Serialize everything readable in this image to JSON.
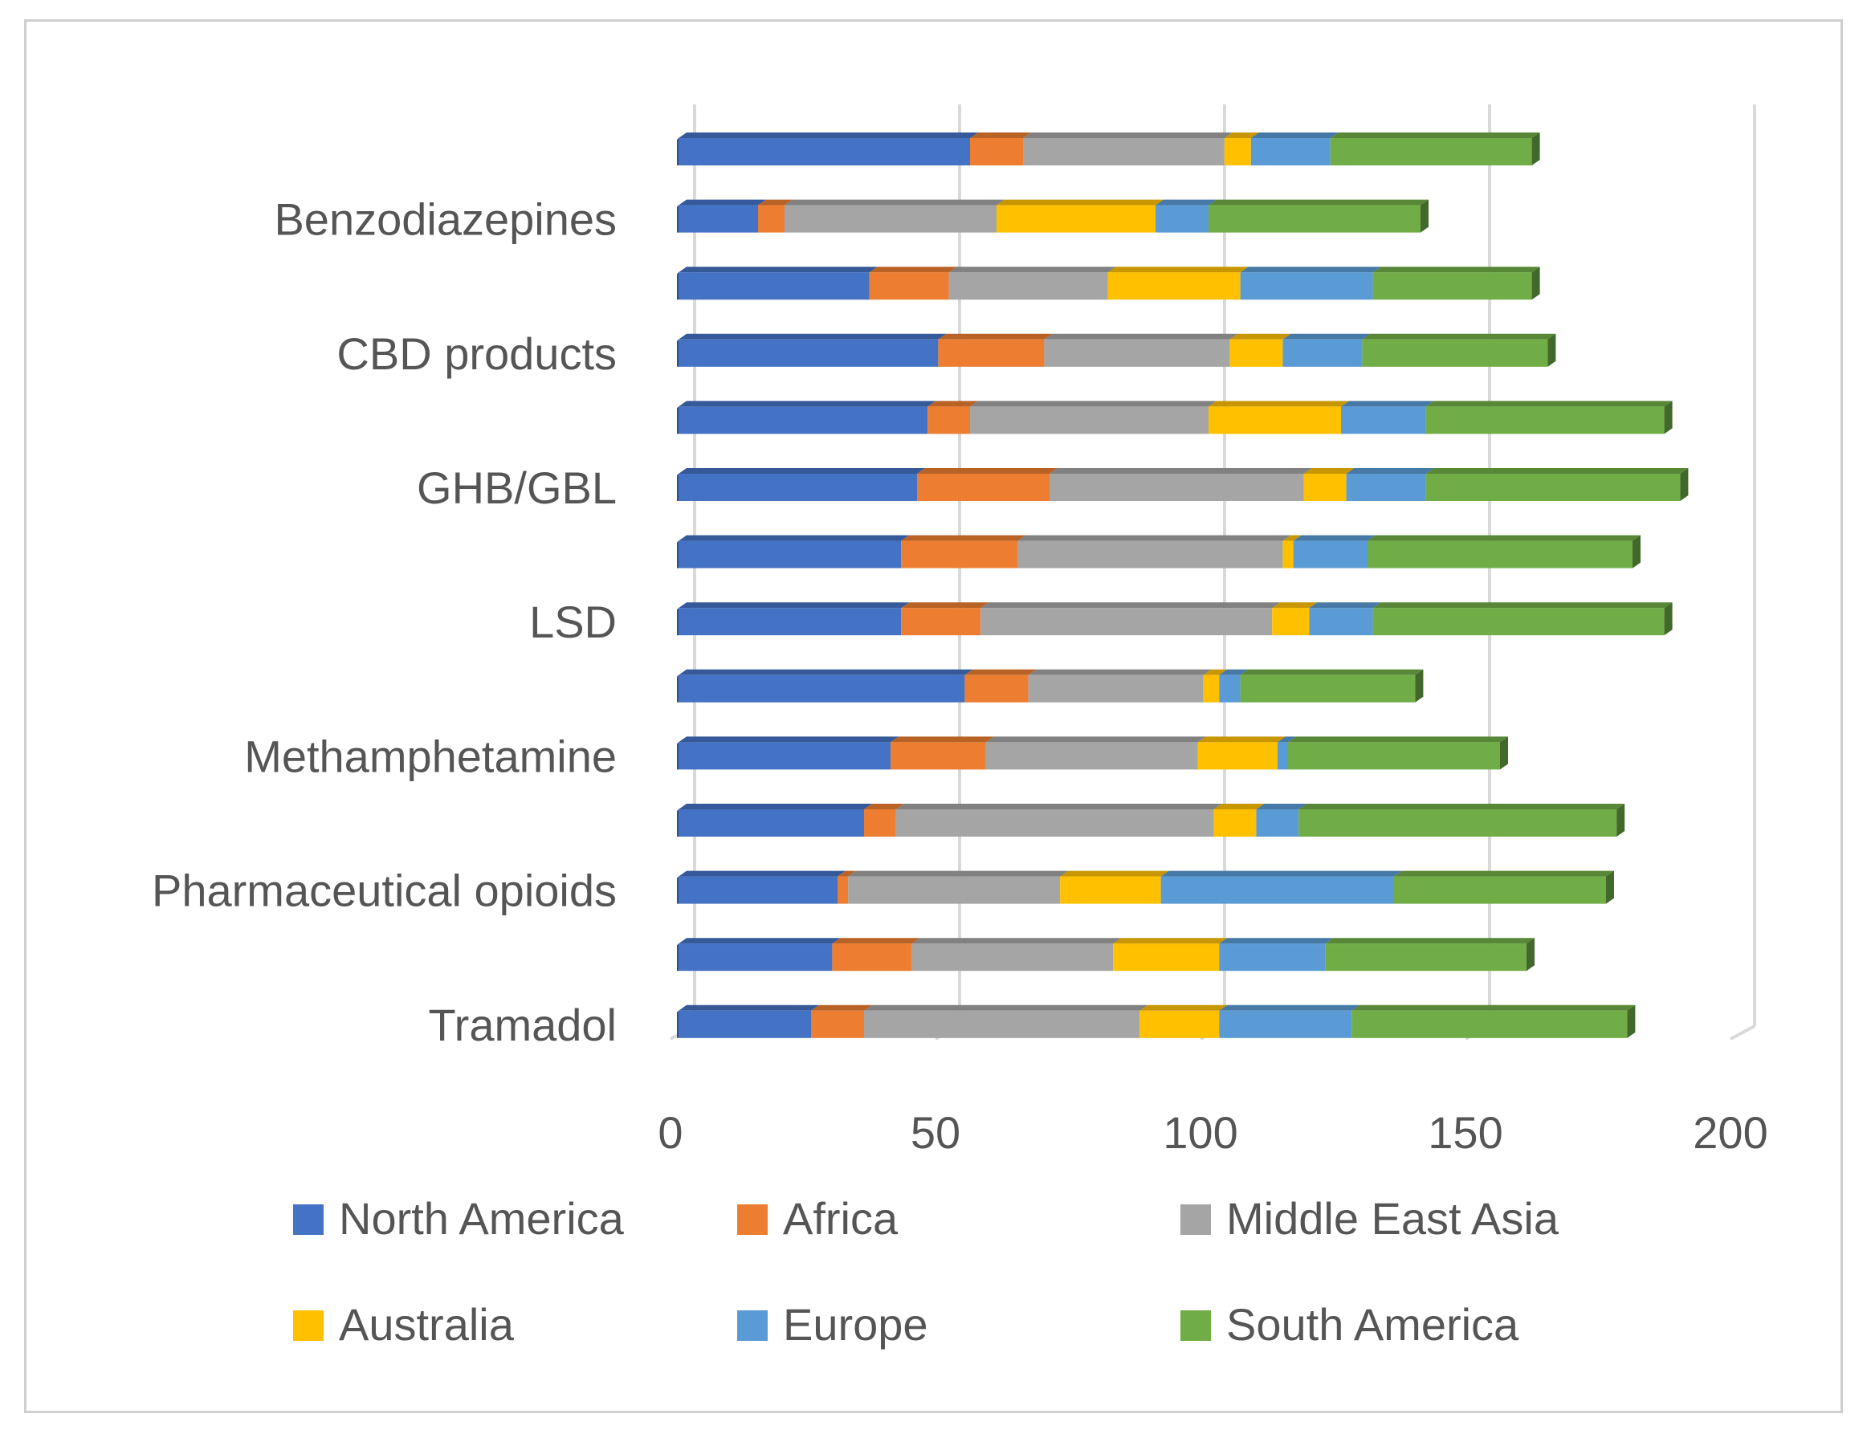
{
  "chart_data": {
    "type": "bar",
    "orientation": "horizontal",
    "stacked": true,
    "style": "3d",
    "title": "",
    "xlabel": "",
    "ylabel": "",
    "xlim": [
      0,
      200
    ],
    "ticks": [
      0,
      50,
      100,
      150,
      200
    ],
    "grid": true,
    "legend_position": "bottom",
    "rows": [
      {
        "label": "",
        "values": [
          55,
          10,
          38,
          5,
          15,
          38
        ]
      },
      {
        "label": "Benzodiazepines",
        "values": [
          15,
          5,
          40,
          30,
          10,
          40
        ]
      },
      {
        "label": "",
        "values": [
          36,
          15,
          30,
          25,
          25,
          30
        ]
      },
      {
        "label": "CBD products",
        "values": [
          49,
          20,
          35,
          10,
          15,
          35
        ]
      },
      {
        "label": "",
        "values": [
          47,
          8,
          45,
          25,
          16,
          45
        ]
      },
      {
        "label": "GHB/GBL",
        "values": [
          45,
          25,
          48,
          8,
          15,
          48
        ]
      },
      {
        "label": "",
        "values": [
          42,
          22,
          50,
          2,
          14,
          50
        ]
      },
      {
        "label": "LSD",
        "values": [
          42,
          15,
          55,
          7,
          12,
          55
        ]
      },
      {
        "label": "",
        "values": [
          54,
          12,
          33,
          3,
          4,
          33
        ]
      },
      {
        "label": "Methamphetamine",
        "values": [
          40,
          18,
          40,
          15,
          2,
          40
        ]
      },
      {
        "label": "",
        "values": [
          35,
          6,
          60,
          8,
          8,
          60
        ]
      },
      {
        "label": "Pharmaceutical opioids",
        "values": [
          30,
          2,
          40,
          19,
          44,
          40
        ]
      },
      {
        "label": "",
        "values": [
          29,
          15,
          38,
          20,
          20,
          38
        ]
      },
      {
        "label": "Tramadol",
        "values": [
          25,
          10,
          52,
          15,
          25,
          52
        ]
      }
    ],
    "series": [
      {
        "name": "North America",
        "color": "#4472c4"
      },
      {
        "name": "Africa",
        "color": "#ed7d31"
      },
      {
        "name": "Middle East Asia",
        "color": "#a5a5a5"
      },
      {
        "name": "Australia",
        "color": "#ffc000"
      },
      {
        "name": "Europe",
        "color": "#5b9bd5"
      },
      {
        "name": "South America",
        "color": "#70ad47"
      }
    ]
  }
}
